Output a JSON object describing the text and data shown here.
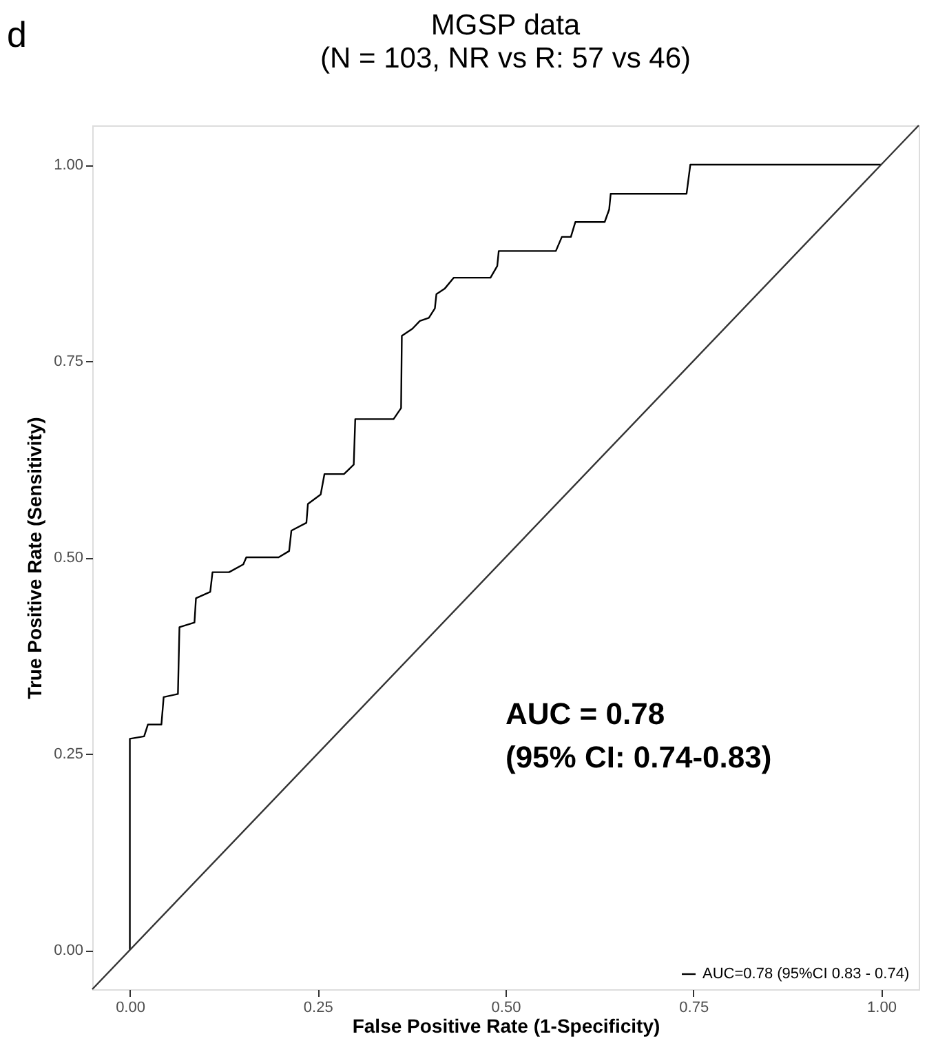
{
  "chart_data": {
    "type": "line",
    "title": "MGSP data",
    "subtitle": "(N = 103, NR vs R: 57 vs 46)",
    "xlabel": "False Positive Rate (1-Specificity)",
    "ylabel": "True Positive Rate (Sensitivity)",
    "annotations": [
      "d",
      "AUC = 0.78",
      "(95% CI: 0.74-0.83)"
    ],
    "series": [
      {
        "name": "AUC=0.78 (95%CI 0.83 - 0.74)",
        "color": "#000000",
        "x": [
          0,
          0,
          0.019,
          0.024,
          0.042,
          0.045,
          0.064,
          0.066,
          0.086,
          0.088,
          0.107,
          0.11,
          0.132,
          0.151,
          0.155,
          0.198,
          0.212,
          0.215,
          0.235,
          0.237,
          0.254,
          0.259,
          0.285,
          0.298,
          0.3,
          0.351,
          0.361,
          0.362,
          0.376,
          0.386,
          0.398,
          0.406,
          0.408,
          0.419,
          0.431,
          0.48,
          0.489,
          0.491,
          0.567,
          0.575,
          0.587,
          0.593,
          0.632,
          0.638,
          0.64,
          0.741,
          0.746,
          1.0
        ],
        "values": [
          0,
          0.269,
          0.272,
          0.287,
          0.287,
          0.322,
          0.326,
          0.411,
          0.417,
          0.448,
          0.456,
          0.481,
          0.481,
          0.491,
          0.5,
          0.5,
          0.508,
          0.534,
          0.544,
          0.568,
          0.58,
          0.606,
          0.606,
          0.618,
          0.676,
          0.676,
          0.69,
          0.782,
          0.791,
          0.801,
          0.805,
          0.817,
          0.835,
          0.842,
          0.856,
          0.856,
          0.871,
          0.89,
          0.89,
          0.908,
          0.908,
          0.927,
          0.927,
          0.943,
          0.963,
          0.963,
          1.0,
          1.0
        ]
      },
      {
        "color": "#333333",
        "x": [
          -0.05,
          1.05
        ],
        "values": [
          -0.05,
          1.05
        ]
      }
    ],
    "xlim": [
      -0.05,
      1.05
    ],
    "ylim": [
      -0.05,
      1.05
    ],
    "xticks": [
      {
        "value": 0,
        "label": "0.00"
      },
      {
        "value": 0.25,
        "label": "0.25"
      },
      {
        "value": 0.5,
        "label": "0.50"
      },
      {
        "value": 0.75,
        "label": "0.75"
      },
      {
        "value": 1,
        "label": "1.00"
      }
    ],
    "yticks": [
      {
        "value": 0,
        "label": "0.00"
      },
      {
        "value": 0.25,
        "label": "0.25"
      },
      {
        "value": 0.5,
        "label": "0.50"
      },
      {
        "value": 0.75,
        "label": "0.75"
      },
      {
        "value": 1,
        "label": "1.00"
      }
    ],
    "grid": false,
    "legend": "bottom right",
    "marker": "none",
    "line_style": "solid"
  }
}
